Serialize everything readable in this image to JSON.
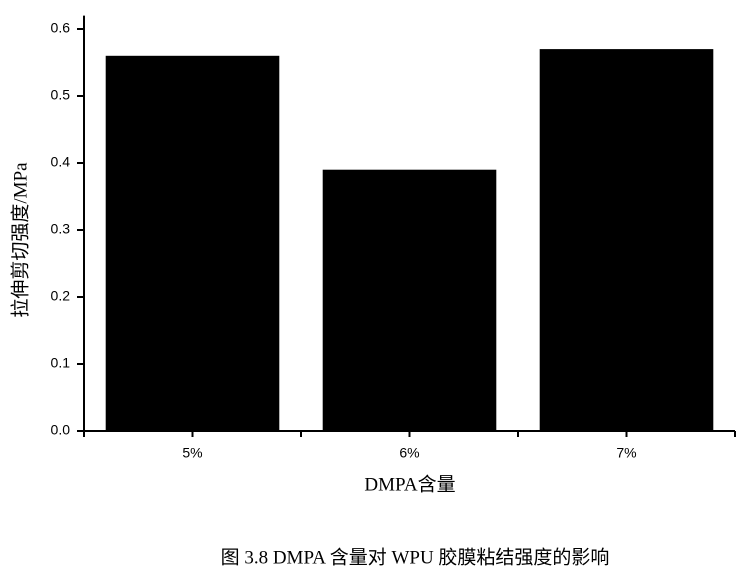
{
  "chart_data": {
    "type": "bar",
    "y_label": "拉伸剪切强度/MPa",
    "x_label": "DMPA含量",
    "caption": "图 3.8 DMPA 含量对 WPU 胶膜粘结强度的影响",
    "categories": [
      "5%",
      "6%",
      "7%"
    ],
    "values": [
      0.56,
      0.39,
      0.57
    ],
    "color": "#000000",
    "ylim": [
      0,
      0.62
    ],
    "yticks": [
      {
        "value": 0,
        "label": "0.0"
      },
      0.1,
      0.2,
      0.3,
      0.4,
      0.5,
      0.6
    ],
    "grid": false
  }
}
